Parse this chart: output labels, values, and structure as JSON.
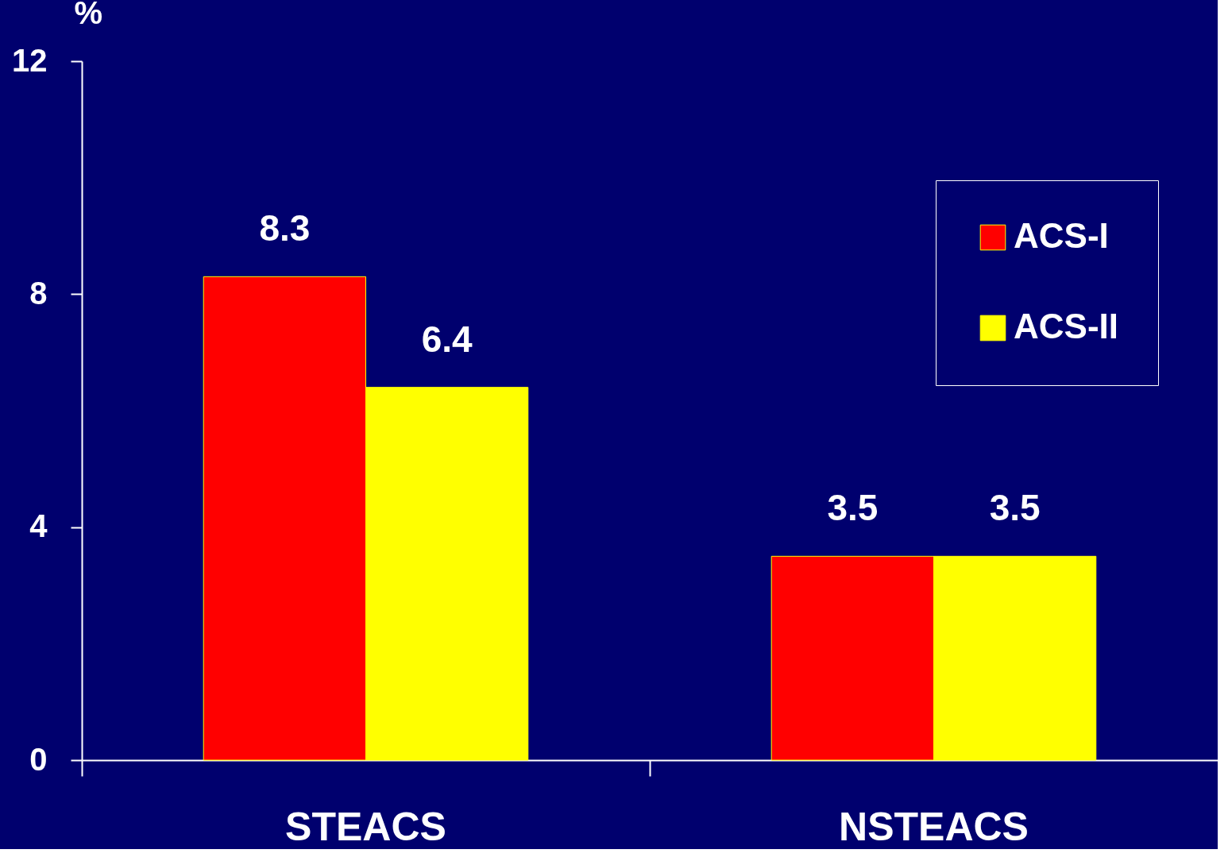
{
  "chart_data": {
    "type": "bar",
    "categories": [
      "STEACS",
      "NSTEACS"
    ],
    "ylabel": "%",
    "ylim": [
      0,
      12
    ],
    "yticks": [
      0,
      4,
      8,
      12
    ],
    "series": [
      {
        "name": "ACS-I",
        "color": "#ff0000",
        "values": [
          8.3,
          3.5
        ]
      },
      {
        "name": "ACS-II",
        "color": "#ffff00",
        "values": [
          6.4,
          3.5
        ]
      }
    ],
    "data_labels": true,
    "legend": "top right",
    "grid": false
  }
}
